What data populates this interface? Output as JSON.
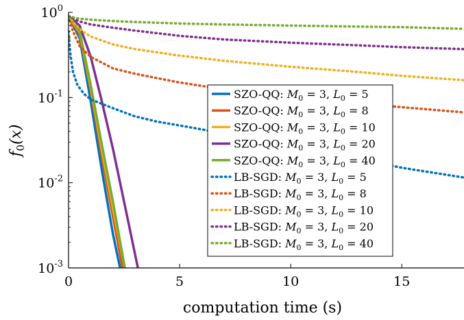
{
  "chart_data": {
    "type": "line",
    "xlabel": "computation time (s)",
    "ylabel": "f_0(x)",
    "yscale": "log",
    "xlim": [
      0,
      17.8
    ],
    "ylim": [
      0.001,
      1
    ],
    "grid": false,
    "legend_placement": "center",
    "x_ticks": [
      0,
      5,
      10,
      15
    ],
    "x_tick_labels": [
      "0",
      "5",
      "10",
      "15"
    ],
    "y_ticks": [
      0.001,
      0.01,
      0.1,
      1
    ],
    "y_tick_labels": [
      {
        "base": "10",
        "exp": "-3"
      },
      {
        "base": "10",
        "exp": "-2"
      },
      {
        "base": "10",
        "exp": "-1"
      },
      {
        "base": "10",
        "exp": "0"
      }
    ],
    "series": [
      {
        "name": "SZO-QQ: M_0 = 3, L_0 = 5",
        "method": "SZO-QQ",
        "M0": "3",
        "L0": "5",
        "color": "#0072BD",
        "style": "solid",
        "x": [
          0,
          0.5,
          1.0,
          1.5,
          2.0,
          2.5
        ],
        "y": [
          0.9,
          0.5,
          0.09,
          0.014,
          0.0025,
          0.0006
        ]
      },
      {
        "name": "SZO-QQ: M_0 = 3, L_0 = 8",
        "method": "SZO-QQ",
        "M0": "3",
        "L0": "8",
        "color": "#D95319",
        "style": "solid",
        "x": [
          0,
          0.5,
          1.0,
          1.5,
          2.0,
          2.5
        ],
        "y": [
          0.9,
          0.55,
          0.12,
          0.02,
          0.004,
          0.0008
        ]
      },
      {
        "name": "SZO-QQ: M_0 = 3, L_0 = 10",
        "method": "SZO-QQ",
        "M0": "3",
        "L0": "10",
        "color": "#EDB120",
        "style": "solid",
        "x": [
          0,
          0.5,
          1.0,
          1.5,
          2.0,
          2.6
        ],
        "y": [
          0.9,
          0.58,
          0.13,
          0.024,
          0.005,
          0.0008
        ]
      },
      {
        "name": "SZO-QQ: M_0 = 3, L_0 = 20",
        "method": "SZO-QQ",
        "M0": "3",
        "L0": "20",
        "color": "#7E2F8E",
        "style": "solid",
        "x": [
          0,
          0.5,
          1.0,
          1.5,
          2.0,
          2.5,
          3.2
        ],
        "y": [
          0.9,
          0.7,
          0.3,
          0.09,
          0.025,
          0.006,
          0.0008
        ]
      },
      {
        "name": "SZO-QQ: M_0 = 3, L_0 = 40",
        "method": "SZO-QQ",
        "M0": "3",
        "L0": "40",
        "color": "#77AC30",
        "style": "solid",
        "x": [
          0,
          0.5,
          1.0,
          1.5,
          2.0,
          2.6
        ],
        "y": [
          0.9,
          0.6,
          0.14,
          0.028,
          0.006,
          0.0008
        ]
      },
      {
        "name": "LB-SGD: M_0 = 3, L_0 = 5",
        "method": "LB-SGD",
        "M0": "3",
        "L0": "5",
        "color": "#0072BD",
        "style": "dotted",
        "x": [
          0,
          0.05,
          0.1,
          0.2,
          0.4,
          0.7,
          1.0,
          2.0,
          3.0,
          4.0,
          5.0,
          7.0,
          10.0,
          13.0,
          15.0,
          17.8
        ],
        "y": [
          0.6,
          0.4,
          0.3,
          0.2,
          0.14,
          0.11,
          0.095,
          0.075,
          0.06,
          0.052,
          0.047,
          0.038,
          0.028,
          0.019,
          0.015,
          0.0115
        ]
      },
      {
        "name": "LB-SGD: M_0 = 3, L_0 = 8",
        "method": "LB-SGD",
        "M0": "3",
        "L0": "8",
        "color": "#D95319",
        "style": "dotted",
        "x": [
          0,
          0.2,
          0.5,
          1.0,
          2.0,
          3.0,
          5.0,
          7.0,
          10.0,
          13.0,
          15.0,
          17.8
        ],
        "y": [
          0.9,
          0.6,
          0.4,
          0.3,
          0.22,
          0.19,
          0.15,
          0.125,
          0.1,
          0.085,
          0.077,
          0.067
        ]
      },
      {
        "name": "LB-SGD: M_0 = 3, L_0 = 10",
        "method": "LB-SGD",
        "M0": "3",
        "L0": "10",
        "color": "#EDB120",
        "style": "dotted",
        "x": [
          0,
          0.3,
          0.7,
          1.0,
          2.0,
          3.0,
          5.0,
          7.0,
          10.0,
          13.0,
          15.0,
          17.8
        ],
        "y": [
          0.9,
          0.72,
          0.58,
          0.52,
          0.42,
          0.37,
          0.31,
          0.27,
          0.23,
          0.2,
          0.18,
          0.16
        ]
      },
      {
        "name": "LB-SGD: M_0 = 3, L_0 = 20",
        "method": "LB-SGD",
        "M0": "3",
        "L0": "20",
        "color": "#7E2F8E",
        "style": "dotted",
        "x": [
          0,
          0.5,
          1.0,
          2.0,
          3.0,
          5.0,
          7.0,
          10.0,
          13.0,
          15.0,
          17.8
        ],
        "y": [
          0.9,
          0.78,
          0.72,
          0.66,
          0.61,
          0.53,
          0.48,
          0.44,
          0.41,
          0.39,
          0.37
        ]
      },
      {
        "name": "LB-SGD: M_0 = 3, L_0 = 40",
        "method": "LB-SGD",
        "M0": "3",
        "L0": "40",
        "color": "#77AC30",
        "style": "dotted",
        "x": [
          0,
          0.5,
          1.0,
          2.0,
          3.0,
          5.0,
          7.0,
          10.0,
          13.0,
          15.0,
          17.8
        ],
        "y": [
          0.9,
          0.84,
          0.82,
          0.79,
          0.77,
          0.74,
          0.72,
          0.7,
          0.68,
          0.67,
          0.64
        ]
      }
    ]
  }
}
